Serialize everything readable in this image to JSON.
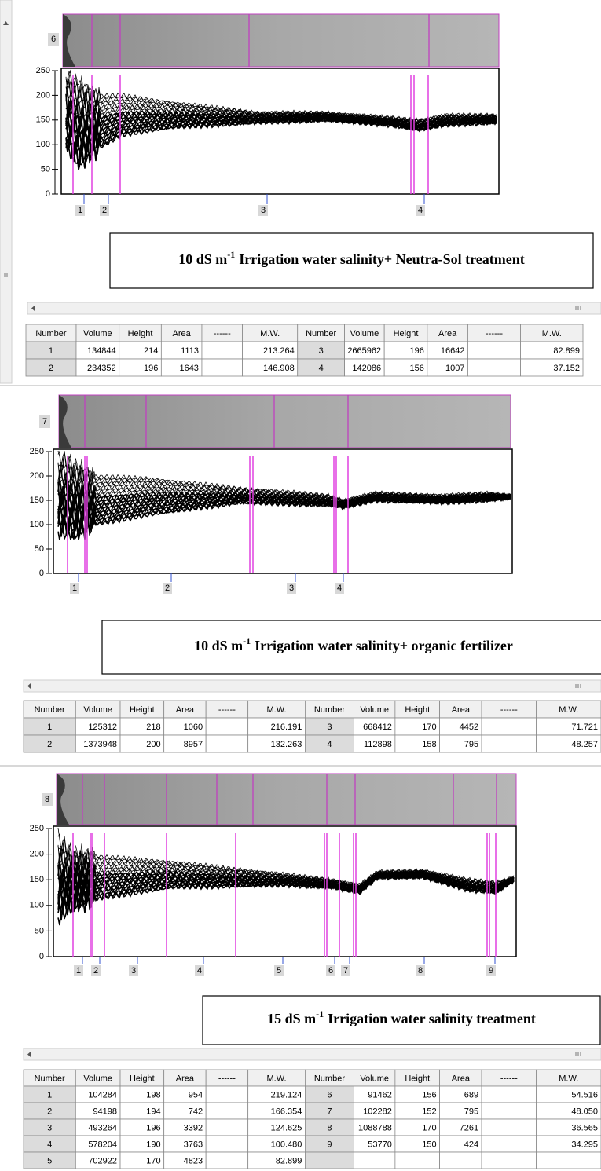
{
  "panels": [
    {
      "lane": "6",
      "yticks": [
        0,
        50,
        100,
        150,
        200,
        250
      ],
      "bands": [
        "1",
        "2",
        "3",
        "4"
      ],
      "caption": {
        "pre": "10 dS m",
        "sup": "-1",
        "post": "Irrigation water salinity+ Neutra-Sol treatment"
      },
      "table": {
        "header": [
          "Number",
          "Volume",
          "Height",
          "Area",
          "------",
          "M.W.",
          "Number",
          "Volume",
          "Height",
          "Area",
          "------",
          "M.W."
        ],
        "rows": [
          {
            "left": {
              "number": "1",
              "volume": "134844",
              "height": "214",
              "area": "1113",
              "mw": "213.264"
            },
            "right": {
              "number": "3",
              "volume": "2665962",
              "height": "196",
              "area": "16642",
              "mw": "82.899"
            }
          },
          {
            "left": {
              "number": "2",
              "volume": "234352",
              "height": "196",
              "area": "1643",
              "mw": "146.908"
            },
            "right": {
              "number": "4",
              "volume": "142086",
              "height": "156",
              "area": "1007",
              "mw": "37.152"
            }
          }
        ]
      }
    },
    {
      "lane": "7",
      "yticks": [
        0,
        50,
        100,
        150,
        200,
        250
      ],
      "bands": [
        "1",
        "2",
        "3",
        "4"
      ],
      "caption": {
        "pre": "10 dS m",
        "sup": "-1",
        "post": "Irrigation water salinity+ organic fertilizer"
      },
      "table": {
        "header": [
          "Number",
          "Volume",
          "Height",
          "Area",
          "------",
          "M.W.",
          "Number",
          "Volume",
          "Height",
          "Area",
          "------",
          "M.W."
        ],
        "rows": [
          {
            "left": {
              "number": "1",
              "volume": "125312",
              "height": "218",
              "area": "1060",
              "mw": "216.191"
            },
            "right": {
              "number": "3",
              "volume": "668412",
              "height": "170",
              "area": "4452",
              "mw": "71.721"
            }
          },
          {
            "left": {
              "number": "2",
              "volume": "1373948",
              "height": "200",
              "area": "8957",
              "mw": "132.263"
            },
            "right": {
              "number": "4",
              "volume": "112898",
              "height": "158",
              "area": "795",
              "mw": "48.257"
            }
          }
        ]
      }
    },
    {
      "lane": "8",
      "yticks": [
        0,
        50,
        100,
        150,
        200,
        250
      ],
      "bands": [
        "1",
        "2",
        "3",
        "4",
        "5",
        "6",
        "7",
        "8",
        "9"
      ],
      "caption": {
        "pre": "15 dS m",
        "sup": "-1",
        "post": "Irrigation water salinity treatment"
      },
      "table": {
        "header": [
          "Number",
          "Volume",
          "Height",
          "Area",
          "------",
          "M.W.",
          "Number",
          "Volume",
          "Height",
          "Area",
          "------",
          "M.W."
        ],
        "rows": [
          {
            "left": {
              "number": "1",
              "volume": "104284",
              "height": "198",
              "area": "954",
              "mw": "219.124"
            },
            "right": {
              "number": "6",
              "volume": "91462",
              "height": "156",
              "area": "689",
              "mw": "54.516"
            }
          },
          {
            "left": {
              "number": "2",
              "volume": "94198",
              "height": "194",
              "area": "742",
              "mw": "166.354"
            },
            "right": {
              "number": "7",
              "volume": "102282",
              "height": "152",
              "area": "795",
              "mw": "48.050"
            }
          },
          {
            "left": {
              "number": "3",
              "volume": "493264",
              "height": "196",
              "area": "3392",
              "mw": "124.625"
            },
            "right": {
              "number": "8",
              "volume": "1088788",
              "height": "170",
              "area": "7261",
              "mw": "36.565"
            }
          },
          {
            "left": {
              "number": "4",
              "volume": "578204",
              "height": "190",
              "area": "3763",
              "mw": "100.480"
            },
            "right": {
              "number": "9",
              "volume": "53770",
              "height": "150",
              "area": "424",
              "mw": "34.295"
            }
          },
          {
            "left": {
              "number": "5",
              "volume": "702922",
              "height": "170",
              "area": "4823",
              "mw": "82.899"
            }
          }
        ]
      }
    }
  ]
}
